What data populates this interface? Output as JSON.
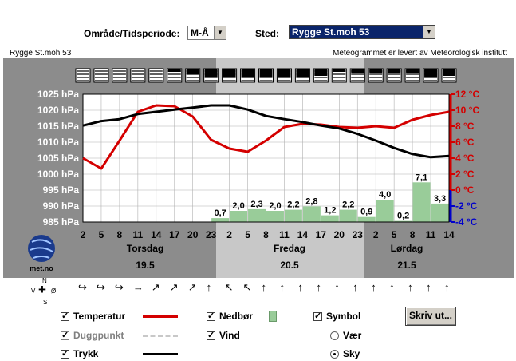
{
  "controls": {
    "period_label": "Område/Tidsperiode:",
    "period_value": "M-Å",
    "location_label": "Sted:",
    "location_value": "Rygge St.moh 53"
  },
  "header": {
    "station": "Rygge St.moh 53",
    "credit": "Meteogrammet er levert av Meteorologisk institutt"
  },
  "chart_data": {
    "type": "line",
    "x_ticks": [
      "2",
      "5",
      "8",
      "11",
      "14",
      "17",
      "20",
      "23",
      "2",
      "5",
      "8",
      "11",
      "14",
      "17",
      "20",
      "23",
      "2",
      "5",
      "8",
      "11",
      "14"
    ],
    "day_names": [
      "Torsdag",
      "Fredag",
      "Lørdag"
    ],
    "day_dates": [
      "19.5",
      "20.5",
      "21.5"
    ],
    "pressure_axis": {
      "labels": [
        "1025 hPa",
        "1020 hPa",
        "1015 hPa",
        "1010 hPa",
        "1005 hPa",
        "1000 hPa",
        "995 hPa",
        "990 hPa",
        "985 hPa"
      ],
      "ylim": [
        985,
        1025
      ]
    },
    "temp_axis": {
      "labels": [
        "12 °C",
        "10 °C",
        "8 °C",
        "6 °C",
        "4 °C",
        "2 °C",
        "0 °C",
        "-2 °C",
        "-4 °C"
      ],
      "ylim": [
        -4,
        12
      ]
    },
    "series": [
      {
        "name": "Temperatur",
        "color": "#d40000",
        "x": [
          2,
          5,
          8,
          11,
          14,
          17,
          20,
          23,
          26,
          29,
          32,
          35,
          38,
          41,
          44,
          47,
          50,
          53,
          56,
          59,
          62
        ],
        "values": [
          4.0,
          2.7,
          6.2,
          9.8,
          10.6,
          10.5,
          9.2,
          6.3,
          5.2,
          4.8,
          6.2,
          7.9,
          8.3,
          8.2,
          7.9,
          7.8,
          8.0,
          7.8,
          8.8,
          9.4,
          9.8
        ]
      },
      {
        "name": "Trykk",
        "color": "#000000",
        "x": [
          2,
          5,
          8,
          11,
          14,
          17,
          20,
          23,
          26,
          29,
          32,
          35,
          38,
          41,
          44,
          47,
          50,
          53,
          56,
          59,
          62
        ],
        "values": [
          1015.2,
          1016.6,
          1017.2,
          1018.8,
          1019.5,
          1020.2,
          1020.8,
          1021.5,
          1021.5,
          1020.2,
          1018.2,
          1017.2,
          1016.3,
          1015.2,
          1014.3,
          1012.6,
          1010.5,
          1008.2,
          1006.3,
          1005.3,
          1005.7
        ]
      }
    ],
    "precip": {
      "x": [
        23,
        26,
        29,
        32,
        35,
        38,
        41,
        44,
        47,
        50,
        53,
        56,
        59
      ],
      "values": [
        0.7,
        2.0,
        2.3,
        2.0,
        2.2,
        2.8,
        1.2,
        2.2,
        0.9,
        4.0,
        0.2,
        7.1,
        3.3
      ],
      "labels": [
        "0,7",
        "2,0",
        "2,3",
        "2,0",
        "2,2",
        "2,8",
        "1,2",
        "2,2",
        "0,9",
        "4,0",
        "0,2",
        "7,1",
        "3,3"
      ]
    },
    "symbols_cloud": [
      0.1,
      0.1,
      0.1,
      0.1,
      0.1,
      0.2,
      0.4,
      0.6,
      0.6,
      0.6,
      0.6,
      0.6,
      0.6,
      0.5,
      0.2,
      0.3,
      0.3,
      0.3,
      0.3,
      0.6,
      0.5
    ]
  },
  "logo_text": "met.no",
  "wind": {
    "compass": {
      "n": "N",
      "v": "V",
      "o": "Ø",
      "s": "S"
    },
    "arrows": [
      "↪",
      "↪",
      "↪",
      "→",
      "↗",
      "↗",
      "↗",
      "↑",
      "↖",
      "↖",
      "↑",
      "↑",
      "↑",
      "↑",
      "↑",
      "↑",
      "↑",
      "↑",
      "↑",
      "↑",
      "↑"
    ]
  },
  "legend": {
    "temperature": "Temperatur",
    "dewpoint": "Duggpunkt",
    "pressure": "Trykk",
    "precipitation": "Nedbør",
    "wind": "Vind",
    "symbol": "Symbol",
    "weather": "Vær",
    "sky": "Sky",
    "print_button": "Skriv ut..."
  },
  "colors": {
    "temperature": "#d40000",
    "pressure": "#000000",
    "precipitation": "#99cc99",
    "dewpoint": "#c8c8c8",
    "frame": "#8c8c8c",
    "day_light": "#c8c8c8",
    "cold_axis": "#0000cc"
  }
}
